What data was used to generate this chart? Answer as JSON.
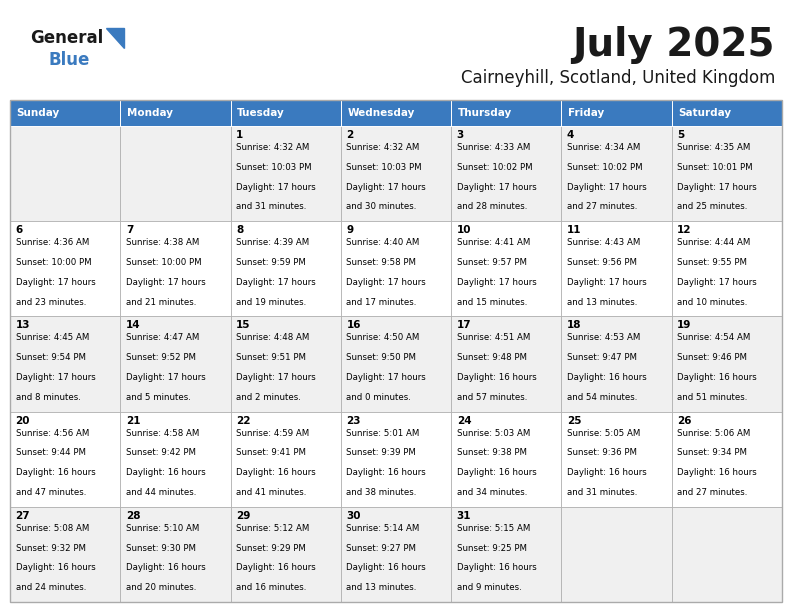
{
  "title": "July 2025",
  "subtitle": "Cairneyhill, Scotland, United Kingdom",
  "days_of_week": [
    "Sunday",
    "Monday",
    "Tuesday",
    "Wednesday",
    "Thursday",
    "Friday",
    "Saturday"
  ],
  "header_bg": "#3a7abf",
  "header_text": "#ffffff",
  "row_bg_odd": "#f0f0f0",
  "row_bg_even": "#ffffff",
  "border_color": "#aaaaaa",
  "text_color": "#000000",
  "calendar_data": [
    [
      {
        "day": "",
        "sunrise": "",
        "sunset": "",
        "daylight": ""
      },
      {
        "day": "",
        "sunrise": "",
        "sunset": "",
        "daylight": ""
      },
      {
        "day": "1",
        "sunrise": "Sunrise: 4:32 AM",
        "sunset": "Sunset: 10:03 PM",
        "daylight": "Daylight: 17 hours\nand 31 minutes."
      },
      {
        "day": "2",
        "sunrise": "Sunrise: 4:32 AM",
        "sunset": "Sunset: 10:03 PM",
        "daylight": "Daylight: 17 hours\nand 30 minutes."
      },
      {
        "day": "3",
        "sunrise": "Sunrise: 4:33 AM",
        "sunset": "Sunset: 10:02 PM",
        "daylight": "Daylight: 17 hours\nand 28 minutes."
      },
      {
        "day": "4",
        "sunrise": "Sunrise: 4:34 AM",
        "sunset": "Sunset: 10:02 PM",
        "daylight": "Daylight: 17 hours\nand 27 minutes."
      },
      {
        "day": "5",
        "sunrise": "Sunrise: 4:35 AM",
        "sunset": "Sunset: 10:01 PM",
        "daylight": "Daylight: 17 hours\nand 25 minutes."
      }
    ],
    [
      {
        "day": "6",
        "sunrise": "Sunrise: 4:36 AM",
        "sunset": "Sunset: 10:00 PM",
        "daylight": "Daylight: 17 hours\nand 23 minutes."
      },
      {
        "day": "7",
        "sunrise": "Sunrise: 4:38 AM",
        "sunset": "Sunset: 10:00 PM",
        "daylight": "Daylight: 17 hours\nand 21 minutes."
      },
      {
        "day": "8",
        "sunrise": "Sunrise: 4:39 AM",
        "sunset": "Sunset: 9:59 PM",
        "daylight": "Daylight: 17 hours\nand 19 minutes."
      },
      {
        "day": "9",
        "sunrise": "Sunrise: 4:40 AM",
        "sunset": "Sunset: 9:58 PM",
        "daylight": "Daylight: 17 hours\nand 17 minutes."
      },
      {
        "day": "10",
        "sunrise": "Sunrise: 4:41 AM",
        "sunset": "Sunset: 9:57 PM",
        "daylight": "Daylight: 17 hours\nand 15 minutes."
      },
      {
        "day": "11",
        "sunrise": "Sunrise: 4:43 AM",
        "sunset": "Sunset: 9:56 PM",
        "daylight": "Daylight: 17 hours\nand 13 minutes."
      },
      {
        "day": "12",
        "sunrise": "Sunrise: 4:44 AM",
        "sunset": "Sunset: 9:55 PM",
        "daylight": "Daylight: 17 hours\nand 10 minutes."
      }
    ],
    [
      {
        "day": "13",
        "sunrise": "Sunrise: 4:45 AM",
        "sunset": "Sunset: 9:54 PM",
        "daylight": "Daylight: 17 hours\nand 8 minutes."
      },
      {
        "day": "14",
        "sunrise": "Sunrise: 4:47 AM",
        "sunset": "Sunset: 9:52 PM",
        "daylight": "Daylight: 17 hours\nand 5 minutes."
      },
      {
        "day": "15",
        "sunrise": "Sunrise: 4:48 AM",
        "sunset": "Sunset: 9:51 PM",
        "daylight": "Daylight: 17 hours\nand 2 minutes."
      },
      {
        "day": "16",
        "sunrise": "Sunrise: 4:50 AM",
        "sunset": "Sunset: 9:50 PM",
        "daylight": "Daylight: 17 hours\nand 0 minutes."
      },
      {
        "day": "17",
        "sunrise": "Sunrise: 4:51 AM",
        "sunset": "Sunset: 9:48 PM",
        "daylight": "Daylight: 16 hours\nand 57 minutes."
      },
      {
        "day": "18",
        "sunrise": "Sunrise: 4:53 AM",
        "sunset": "Sunset: 9:47 PM",
        "daylight": "Daylight: 16 hours\nand 54 minutes."
      },
      {
        "day": "19",
        "sunrise": "Sunrise: 4:54 AM",
        "sunset": "Sunset: 9:46 PM",
        "daylight": "Daylight: 16 hours\nand 51 minutes."
      }
    ],
    [
      {
        "day": "20",
        "sunrise": "Sunrise: 4:56 AM",
        "sunset": "Sunset: 9:44 PM",
        "daylight": "Daylight: 16 hours\nand 47 minutes."
      },
      {
        "day": "21",
        "sunrise": "Sunrise: 4:58 AM",
        "sunset": "Sunset: 9:42 PM",
        "daylight": "Daylight: 16 hours\nand 44 minutes."
      },
      {
        "day": "22",
        "sunrise": "Sunrise: 4:59 AM",
        "sunset": "Sunset: 9:41 PM",
        "daylight": "Daylight: 16 hours\nand 41 minutes."
      },
      {
        "day": "23",
        "sunrise": "Sunrise: 5:01 AM",
        "sunset": "Sunset: 9:39 PM",
        "daylight": "Daylight: 16 hours\nand 38 minutes."
      },
      {
        "day": "24",
        "sunrise": "Sunrise: 5:03 AM",
        "sunset": "Sunset: 9:38 PM",
        "daylight": "Daylight: 16 hours\nand 34 minutes."
      },
      {
        "day": "25",
        "sunrise": "Sunrise: 5:05 AM",
        "sunset": "Sunset: 9:36 PM",
        "daylight": "Daylight: 16 hours\nand 31 minutes."
      },
      {
        "day": "26",
        "sunrise": "Sunrise: 5:06 AM",
        "sunset": "Sunset: 9:34 PM",
        "daylight": "Daylight: 16 hours\nand 27 minutes."
      }
    ],
    [
      {
        "day": "27",
        "sunrise": "Sunrise: 5:08 AM",
        "sunset": "Sunset: 9:32 PM",
        "daylight": "Daylight: 16 hours\nand 24 minutes."
      },
      {
        "day": "28",
        "sunrise": "Sunrise: 5:10 AM",
        "sunset": "Sunset: 9:30 PM",
        "daylight": "Daylight: 16 hours\nand 20 minutes."
      },
      {
        "day": "29",
        "sunrise": "Sunrise: 5:12 AM",
        "sunset": "Sunset: 9:29 PM",
        "daylight": "Daylight: 16 hours\nand 16 minutes."
      },
      {
        "day": "30",
        "sunrise": "Sunrise: 5:14 AM",
        "sunset": "Sunset: 9:27 PM",
        "daylight": "Daylight: 16 hours\nand 13 minutes."
      },
      {
        "day": "31",
        "sunrise": "Sunrise: 5:15 AM",
        "sunset": "Sunset: 9:25 PM",
        "daylight": "Daylight: 16 hours\nand 9 minutes."
      },
      {
        "day": "",
        "sunrise": "",
        "sunset": "",
        "daylight": ""
      },
      {
        "day": "",
        "sunrise": "",
        "sunset": "",
        "daylight": ""
      }
    ]
  ],
  "fig_width": 7.92,
  "fig_height": 6.12,
  "dpi": 100
}
